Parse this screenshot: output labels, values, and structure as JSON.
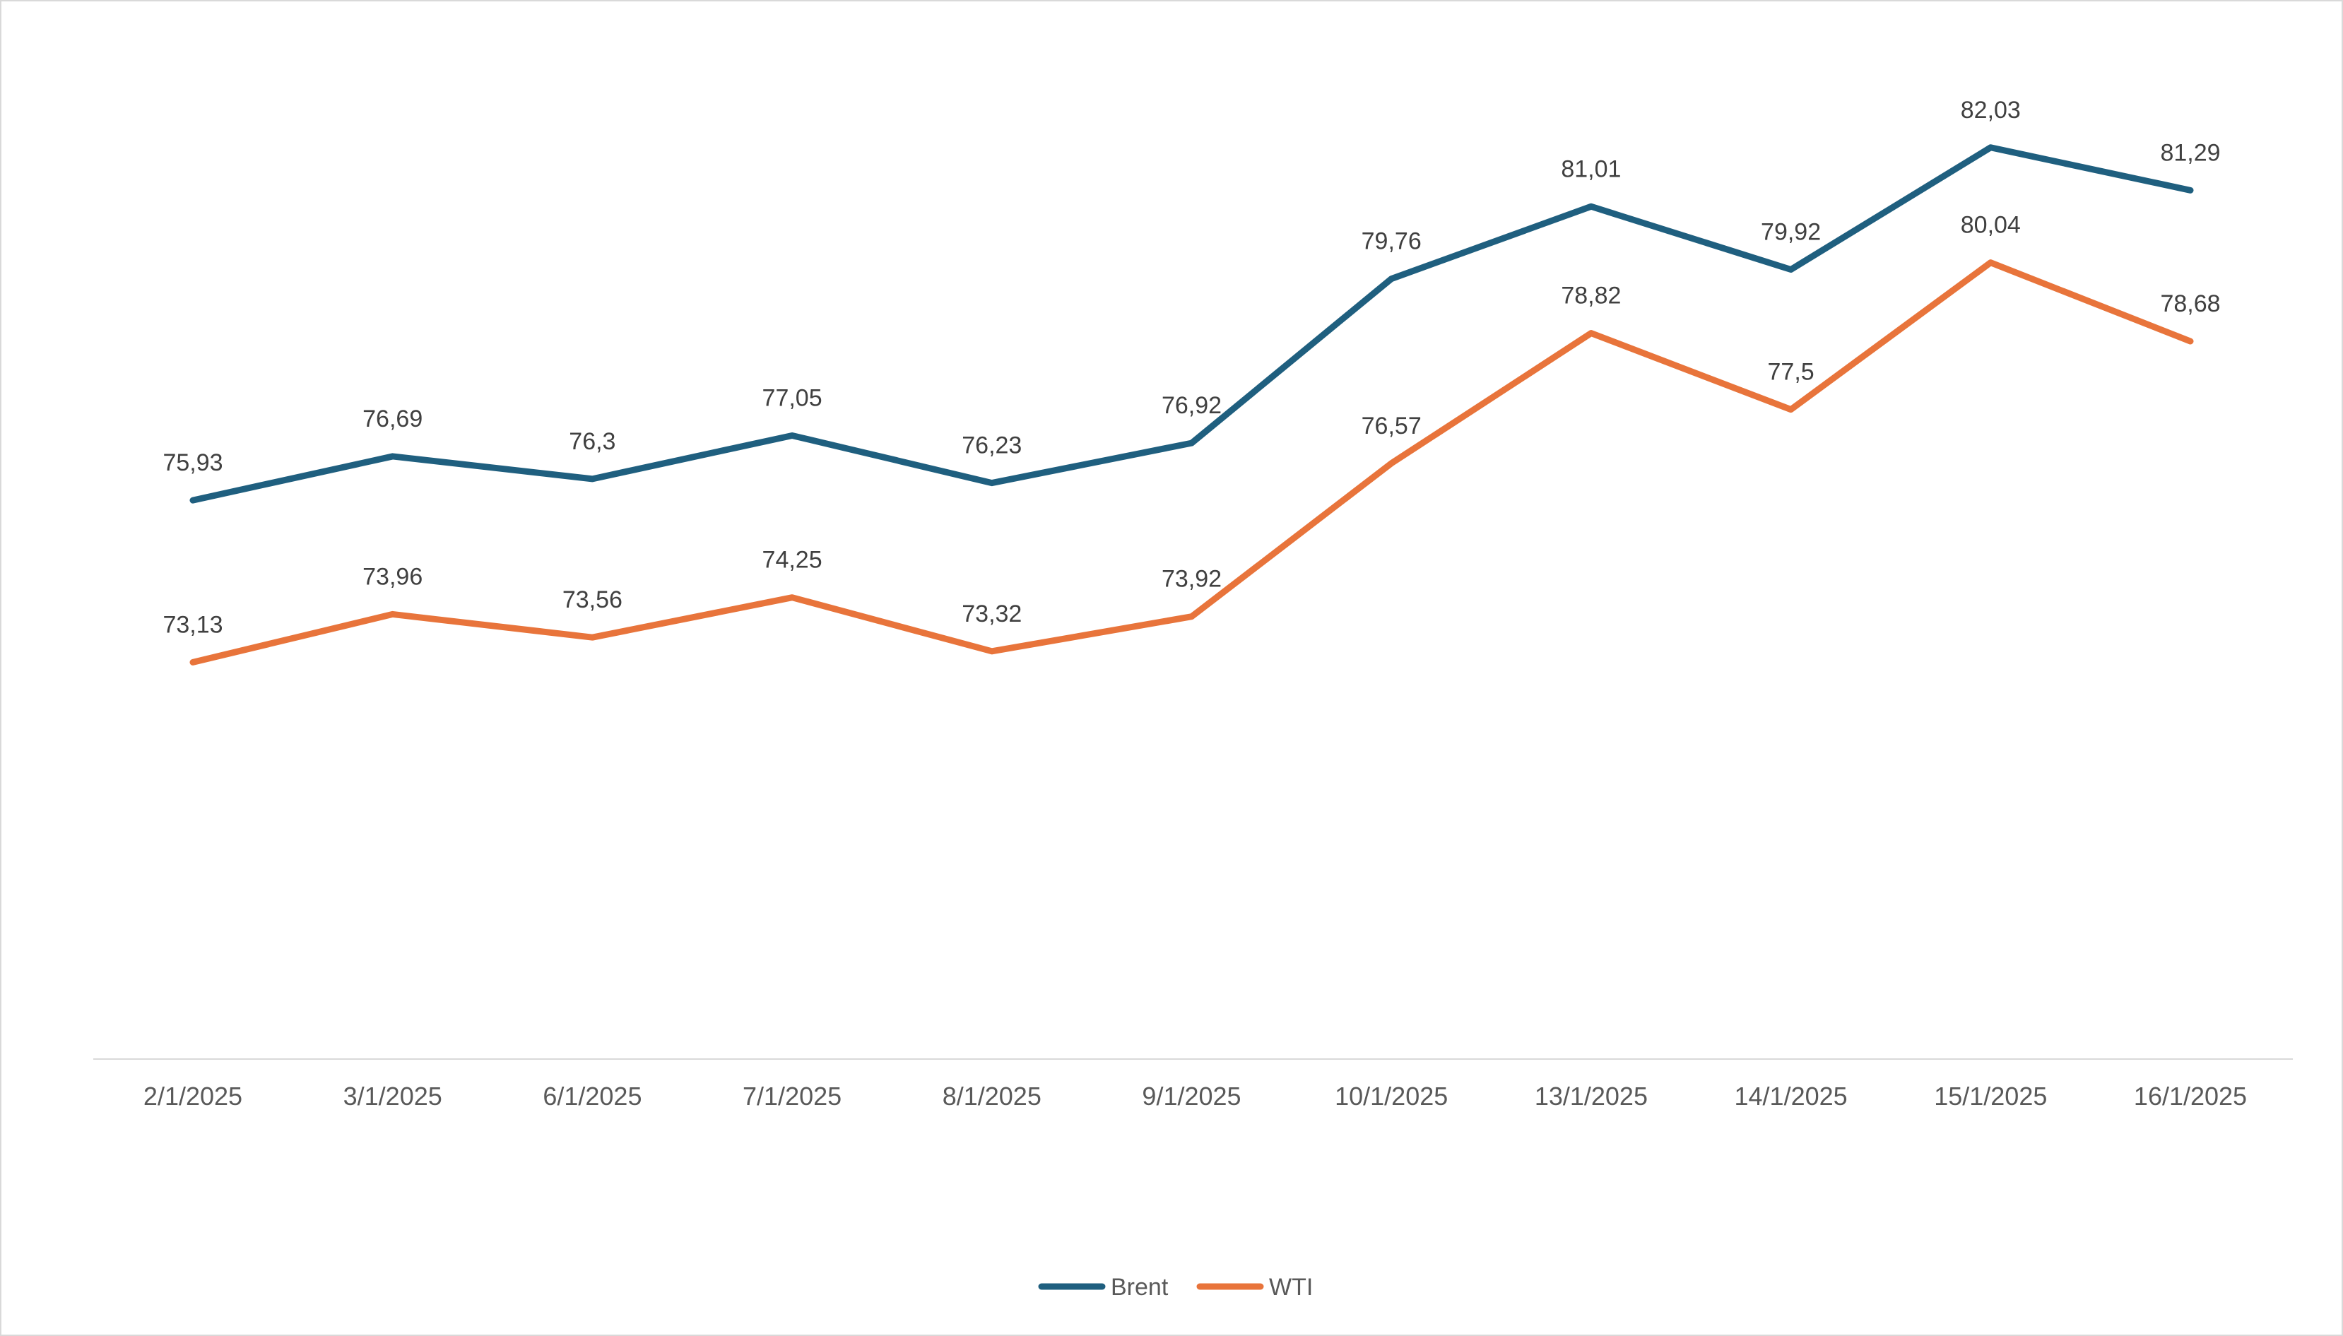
{
  "chart_data": {
    "type": "line",
    "title": "",
    "xlabel": "",
    "ylabel": "",
    "categories": [
      "2/1/2025",
      "3/1/2025",
      "6/1/2025",
      "7/1/2025",
      "8/1/2025",
      "9/1/2025",
      "10/1/2025",
      "13/1/2025",
      "14/1/2025",
      "15/1/2025",
      "16/1/2025"
    ],
    "series": [
      {
        "name": "Brent",
        "color": "#1f5f7f",
        "values": [
          75.93,
          76.69,
          76.3,
          77.05,
          76.23,
          76.92,
          79.76,
          81.01,
          79.92,
          82.03,
          81.29
        ],
        "labels": [
          "75,93",
          "76,69",
          "76,3",
          "77,05",
          "76,23",
          "76,92",
          "79,76",
          "81,01",
          "79,92",
          "82,03",
          "81,29"
        ]
      },
      {
        "name": "WTI",
        "color": "#e8743b",
        "values": [
          73.13,
          73.96,
          73.56,
          74.25,
          73.32,
          73.92,
          76.57,
          78.82,
          77.5,
          80.04,
          78.68
        ],
        "labels": [
          "73,13",
          "73,96",
          "73,56",
          "74,25",
          "73,32",
          "73,92",
          "76,57",
          "78,82",
          "77,5",
          "80,04",
          "78,68"
        ]
      }
    ],
    "ylim": [
      66.27,
      84.58
    ],
    "grid": false,
    "legend": "bottom-center"
  }
}
